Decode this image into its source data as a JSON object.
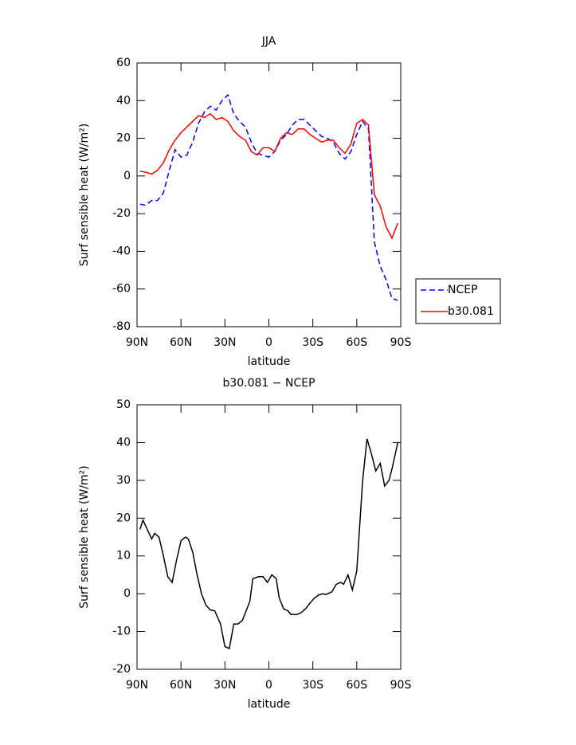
{
  "chart_data": [
    {
      "type": "line",
      "title": "JJA",
      "xlabel": "latitude",
      "ylabel": "Surf sensible heat (W/m²)",
      "x": [
        88,
        84,
        80,
        76,
        72,
        68,
        64,
        60,
        56,
        52,
        48,
        44,
        40,
        36,
        32,
        28,
        24,
        20,
        16,
        12,
        8,
        4,
        0,
        -4,
        -8,
        -12,
        -16,
        -20,
        -24,
        -28,
        -32,
        -36,
        -40,
        -44,
        -48,
        -52,
        -56,
        -60,
        -64,
        -68,
        -72,
        -76,
        -80,
        -84,
        -88
      ],
      "series": [
        {
          "name": "NCEP",
          "color": "#0000ff",
          "style": "dashed",
          "values": [
            -15,
            -15.5,
            -13,
            -13,
            -9,
            3,
            14,
            10,
            11,
            18,
            28,
            34,
            37,
            35,
            40,
            43,
            33,
            29,
            26,
            18,
            12,
            11,
            10,
            13,
            19,
            22,
            27,
            30,
            30,
            27,
            24,
            21,
            20,
            18,
            12,
            9,
            13,
            22,
            29,
            25,
            -35,
            -48,
            -55,
            -65,
            -66
          ]
        },
        {
          "name": "b30.081",
          "color": "#ff0000",
          "style": "solid",
          "values": [
            2.5,
            2,
            1,
            3,
            7,
            14,
            19,
            23,
            26,
            29,
            32,
            31,
            33,
            30,
            31,
            29,
            24,
            21,
            19,
            13,
            11,
            15,
            15,
            13,
            20,
            23,
            22,
            25,
            25,
            22,
            20,
            18,
            19,
            19,
            15,
            12,
            17,
            28,
            30,
            27,
            -10,
            -16,
            -27,
            -33,
            -25
          ]
        }
      ],
      "xlim": [
        90,
        -90
      ],
      "xticks": [
        {
          "value": 90,
          "label": "90N"
        },
        {
          "value": 60,
          "label": "60N"
        },
        {
          "value": 30,
          "label": "30N"
        },
        0,
        {
          "value": -30,
          "label": "30S"
        },
        {
          "value": -60,
          "label": "60S"
        },
        {
          "value": -90,
          "label": "90S"
        }
      ],
      "ylim": [
        -80,
        60
      ],
      "yticks": [
        -80,
        -60,
        -40,
        -20,
        0,
        20,
        40,
        60
      ],
      "legend": "right",
      "grid": false
    },
    {
      "type": "line",
      "title": "b30.081 − NCEP",
      "xlabel": "latitude",
      "ylabel": "Surf sensible heat (W/m²)",
      "x": [
        88,
        86,
        80,
        78,
        75,
        72,
        69,
        66,
        63,
        60,
        57,
        55,
        52,
        49,
        46,
        43,
        40,
        37,
        33,
        30,
        27,
        24,
        21,
        18,
        16,
        13,
        11,
        7,
        4,
        1,
        -2,
        -5,
        -7,
        -10,
        -13,
        -15,
        -19,
        -22,
        -25,
        -28,
        -31,
        -34,
        -37,
        -39,
        -43,
        -46,
        -49,
        -51,
        -54,
        -57,
        -60,
        -64,
        -67,
        -70,
        -73,
        -76,
        -79,
        -82,
        -84,
        -88
      ],
      "series": [
        {
          "color": "#000000",
          "style": "solid",
          "values": [
            17,
            19.5,
            14.5,
            16,
            15,
            10,
            4.5,
            3,
            9,
            14,
            15,
            14.5,
            11,
            5,
            0,
            -3,
            -4.3,
            -4.5,
            -8,
            -14,
            -14.5,
            -8,
            -8,
            -7,
            -5,
            -2,
            4,
            4.5,
            4.5,
            3,
            5,
            4,
            -1,
            -4,
            -4.5,
            -5.5,
            -5.5,
            -5,
            -4,
            -2.5,
            -1.2,
            -0.3,
            0,
            -0.2,
            0.5,
            2.5,
            3,
            2.5,
            5,
            1,
            6,
            30,
            41,
            37,
            32.5,
            34.5,
            28.5,
            30,
            33,
            40
          ]
        }
      ],
      "xlim": [
        90,
        -90
      ],
      "xticks": [
        {
          "value": 90,
          "label": "90N"
        },
        {
          "value": 60,
          "label": "60N"
        },
        {
          "value": 30,
          "label": "30N"
        },
        0,
        {
          "value": -30,
          "label": "30S"
        },
        {
          "value": -60,
          "label": "60S"
        },
        {
          "value": -90,
          "label": "90S"
        }
      ],
      "ylim": [
        -20,
        50
      ],
      "yticks": [
        -20,
        -10,
        0,
        10,
        20,
        30,
        40,
        50
      ],
      "grid": false
    }
  ]
}
